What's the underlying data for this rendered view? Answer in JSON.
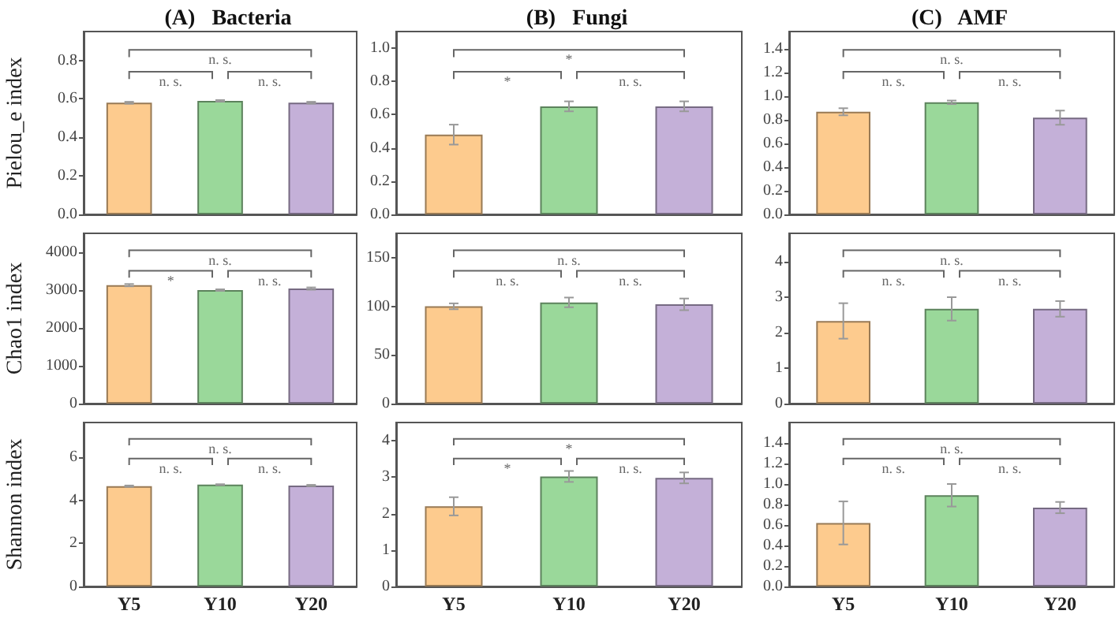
{
  "chart_data": [
    {
      "type": "bar",
      "title": "(A)   Bacteria",
      "ylabel": "Pielou_e index",
      "categories": [
        null,
        null,
        null
      ],
      "values": [
        0.58,
        0.59,
        0.58
      ],
      "errors": [
        0.005,
        0.004,
        0.005
      ],
      "colors": [
        "#fdcb8e",
        "#9ad89a",
        "#c4b0d8"
      ],
      "ylim": [
        0,
        0.95
      ],
      "yticks": [
        {
          "value": 0,
          "label": "0.0"
        },
        {
          "value": 0.2,
          "label": "0.2"
        },
        {
          "value": 0.4,
          "label": "0.4"
        },
        {
          "value": 0.6,
          "label": "0.6"
        },
        {
          "value": 0.8,
          "label": "0.8"
        }
      ],
      "annotations": [
        "n. s.",
        "n. s.",
        "n. s."
      ]
    },
    {
      "type": "bar",
      "title": "(B)   Fungi",
      "categories": [
        null,
        null,
        null
      ],
      "values": [
        0.48,
        0.65,
        0.65
      ],
      "errors": [
        0.06,
        0.03,
        0.03
      ],
      "colors": [
        "#fdcb8e",
        "#9ad89a",
        "#c4b0d8"
      ],
      "ylim": [
        0,
        1.1
      ],
      "yticks": [
        {
          "value": 0,
          "label": "0.0"
        },
        {
          "value": 0.2,
          "label": "0.2"
        },
        {
          "value": 0.4,
          "label": "0.4"
        },
        {
          "value": 0.6,
          "label": "0.6"
        },
        {
          "value": 0.8,
          "label": "0.8"
        },
        {
          "value": 1,
          "label": "1.0"
        }
      ],
      "annotations": [
        "*",
        "*",
        "n. s."
      ]
    },
    {
      "type": "bar",
      "title": "(C)   AMF",
      "categories": [
        null,
        null,
        null
      ],
      "values": [
        0.87,
        0.95,
        0.82
      ],
      "errors": [
        0.03,
        0.015,
        0.06
      ],
      "colors": [
        "#fdcb8e",
        "#9ad89a",
        "#c4b0d8"
      ],
      "ylim": [
        0,
        1.55
      ],
      "yticks": [
        {
          "value": 0,
          "label": "0.0"
        },
        {
          "value": 0.2,
          "label": "0.2"
        },
        {
          "value": 0.4,
          "label": "0.4"
        },
        {
          "value": 0.6,
          "label": "0.6"
        },
        {
          "value": 0.8,
          "label": "0.8"
        },
        {
          "value": 1,
          "label": "1.0"
        },
        {
          "value": 1.2,
          "label": "1.2"
        },
        {
          "value": 1.4,
          "label": "1.4"
        }
      ],
      "annotations": [
        "n. s.",
        "n. s.",
        "n. s."
      ]
    },
    {
      "type": "bar",
      "ylabel": "Chao1 index",
      "categories": [
        null,
        null,
        null
      ],
      "values": [
        3130,
        3000,
        3040
      ],
      "errors": [
        30,
        20,
        30
      ],
      "colors": [
        "#fdcb8e",
        "#9ad89a",
        "#c4b0d8"
      ],
      "ylim": [
        0,
        4500
      ],
      "yticks": [
        0,
        1000,
        2000,
        3000,
        4000
      ],
      "annotations": [
        "n. s.",
        "*",
        "n. s."
      ]
    },
    {
      "type": "bar",
      "categories": [
        null,
        null,
        null
      ],
      "values": [
        100,
        104,
        102
      ],
      "errors": [
        3,
        5,
        6
      ],
      "colors": [
        "#fdcb8e",
        "#9ad89a",
        "#c4b0d8"
      ],
      "ylim": [
        0,
        175
      ],
      "yticks": [
        0,
        50,
        100,
        150
      ],
      "annotations": [
        "n. s.",
        "n. s.",
        "n. s."
      ]
    },
    {
      "type": "bar",
      "categories": [
        null,
        null,
        null
      ],
      "values": [
        2.33,
        2.67,
        2.67
      ],
      "errors": [
        0.5,
        0.33,
        0.22
      ],
      "colors": [
        "#fdcb8e",
        "#9ad89a",
        "#c4b0d8"
      ],
      "ylim": [
        0,
        4.8
      ],
      "yticks": [
        0,
        1,
        2,
        3,
        4
      ],
      "annotations": [
        "n. s.",
        "n. s.",
        "n. s."
      ]
    },
    {
      "type": "bar",
      "ylabel": "Shannon index",
      "categories": [
        "Y5",
        "Y10",
        "Y20"
      ],
      "values": [
        4.65,
        4.72,
        4.68
      ],
      "errors": [
        0.03,
        0.02,
        0.03
      ],
      "colors": [
        "#fdcb8e",
        "#9ad89a",
        "#c4b0d8"
      ],
      "ylim": [
        0,
        7.6
      ],
      "yticks": [
        0,
        2,
        4,
        6
      ],
      "annotations": [
        "n. s.",
        "n. s.",
        "n. s."
      ]
    },
    {
      "type": "bar",
      "categories": [
        "Y5",
        "Y10",
        "Y20"
      ],
      "values": [
        2.2,
        3.02,
        2.98
      ],
      "errors": [
        0.25,
        0.15,
        0.15
      ],
      "colors": [
        "#fdcb8e",
        "#9ad89a",
        "#c4b0d8"
      ],
      "ylim": [
        0,
        4.5
      ],
      "yticks": [
        0,
        1,
        2,
        3,
        4
      ],
      "annotations": [
        "*",
        "*",
        "n. s."
      ]
    },
    {
      "type": "bar",
      "categories": [
        "Y5",
        "Y10",
        "Y20"
      ],
      "values": [
        0.62,
        0.89,
        0.77
      ],
      "errors": [
        0.21,
        0.11,
        0.055
      ],
      "colors": [
        "#fdcb8e",
        "#9ad89a",
        "#c4b0d8"
      ],
      "ylim": [
        0,
        1.6
      ],
      "yticks": [
        {
          "value": 0,
          "label": "0.0"
        },
        {
          "value": 0.2,
          "label": "0.2"
        },
        {
          "value": 0.4,
          "label": "0.4"
        },
        {
          "value": 0.6,
          "label": "0.6"
        },
        {
          "value": 0.8,
          "label": "0.8"
        },
        {
          "value": 1,
          "label": "1.0"
        },
        {
          "value": 1.2,
          "label": "1.2"
        },
        {
          "value": 1.4,
          "label": "1.4"
        }
      ],
      "annotations": [
        "n. s.",
        "n. s.",
        "n. s."
      ]
    }
  ]
}
